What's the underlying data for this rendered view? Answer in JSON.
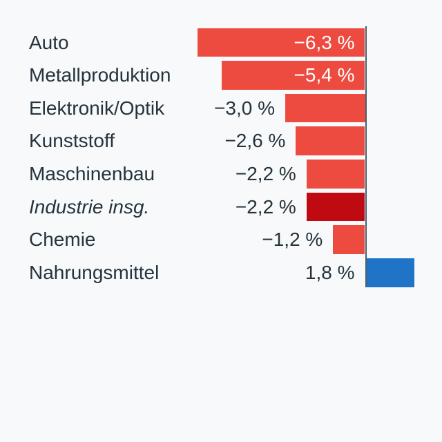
{
  "chart_data": {
    "type": "bar",
    "orientation": "horizontal",
    "categories": [
      "Auto",
      "Metallproduktion",
      "Elektronik/Optik",
      "Kunststoff",
      "Maschinenbau",
      "Industrie insg.",
      "Chemie",
      "Nahrungsmittel"
    ],
    "values": [
      -6.3,
      -5.4,
      -3.0,
      -2.6,
      -2.2,
      -2.2,
      -1.2,
      1.8
    ],
    "value_labels": [
      "−6,3 %",
      "−5,4 %",
      "−3,0 %",
      "−2,6 %",
      "−2,2 %",
      "−1,2 %",
      "1,8 %"
    ],
    "value_labels_per_row": [
      "−6,3 %",
      "−5,4 %",
      "−3,0 %",
      "−2,6 %",
      "−2,2 %",
      "−2,2 %",
      "−1,2 %",
      "1,8 %"
    ],
    "unit": "%",
    "baseline": 0,
    "emphasized_index": 5,
    "emphasis_style": "italic-label-dark-bar",
    "grid": false,
    "legend_position": "none",
    "colors": {
      "negative_bar": "#ee4b40",
      "emphasized_bar": "#c00a12",
      "positive_bar": "#2074c8",
      "axis_line": "#45616e",
      "label_text": "#25333c",
      "inside_value_text": "#ffffff",
      "background": "#f8f9fa"
    }
  }
}
